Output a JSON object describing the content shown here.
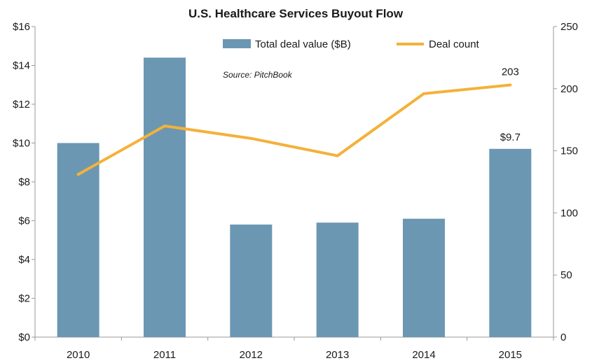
{
  "chart_data": {
    "type": "bar",
    "title": "U.S. Healthcare Services Buyout Flow",
    "categories": [
      "2010",
      "2011",
      "2012",
      "2013",
      "2014",
      "2015"
    ],
    "series": [
      {
        "name": "Total deal value ($B)",
        "type": "bar",
        "axis": "left",
        "color": "#6b97b3",
        "values": [
          10.0,
          14.4,
          5.8,
          5.9,
          6.1,
          9.7
        ]
      },
      {
        "name": "Deal count",
        "type": "line",
        "axis": "right",
        "color": "#f4b13a",
        "values": [
          131,
          170,
          160,
          146,
          196,
          203
        ]
      }
    ],
    "y_left": {
      "ylim": [
        0,
        16
      ],
      "ticks": [
        0,
        2,
        4,
        6,
        8,
        10,
        12,
        14,
        16
      ],
      "tick_labels": [
        "$0",
        "$2",
        "$4",
        "$6",
        "$8",
        "$10",
        "$12",
        "$14",
        "$16"
      ]
    },
    "y_right": {
      "ylim": [
        0,
        250
      ],
      "ticks": [
        0,
        50,
        100,
        150,
        200,
        250
      ],
      "tick_labels": [
        "0",
        "50",
        "100",
        "150",
        "200",
        "250"
      ]
    },
    "data_labels": [
      {
        "series": 0,
        "index": 5,
        "text": "$9.7"
      },
      {
        "series": 1,
        "index": 5,
        "text": "203"
      }
    ],
    "annotation": "Source: PitchBook",
    "legend_position": "top-center",
    "grid": false
  }
}
